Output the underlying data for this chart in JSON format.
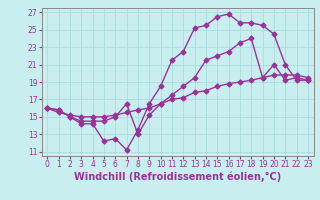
{
  "xlabel": "Windchill (Refroidissement éolien,°C)",
  "bg_color": "#c8eef0",
  "line_color": "#993399",
  "grid_color": "#aadddd",
  "xlim": [
    -0.5,
    23.5
  ],
  "ylim": [
    10.5,
    27.5
  ],
  "xticks": [
    0,
    1,
    2,
    3,
    4,
    5,
    6,
    7,
    8,
    9,
    10,
    11,
    12,
    13,
    14,
    15,
    16,
    17,
    18,
    19,
    20,
    21,
    22,
    23
  ],
  "yticks": [
    11,
    13,
    15,
    17,
    19,
    21,
    23,
    25,
    27
  ],
  "line1_x": [
    0,
    1,
    2,
    3,
    4,
    5,
    6,
    7,
    8,
    9,
    10,
    11,
    12,
    13,
    14,
    15,
    16,
    17,
    18,
    19,
    20,
    21,
    22,
    23
  ],
  "line1_y": [
    16.0,
    15.8,
    15.0,
    14.2,
    14.2,
    12.2,
    12.5,
    11.2,
    13.5,
    16.5,
    18.5,
    21.5,
    22.5,
    25.2,
    25.5,
    26.5,
    26.8,
    25.8,
    25.8,
    25.5,
    24.5,
    21.0,
    19.2,
    19.2
  ],
  "line2_x": [
    0,
    1,
    2,
    3,
    4,
    5,
    6,
    7,
    8,
    9,
    10,
    11,
    12,
    13,
    14,
    15,
    16,
    17,
    18,
    19,
    20,
    21,
    22,
    23
  ],
  "line2_y": [
    16.0,
    15.8,
    15.0,
    14.5,
    14.5,
    14.5,
    15.0,
    16.5,
    13.0,
    15.2,
    16.5,
    17.5,
    18.5,
    19.5,
    21.5,
    22.0,
    22.5,
    23.5,
    24.0,
    19.5,
    21.0,
    19.2,
    19.5,
    19.2
  ],
  "line3_x": [
    0,
    1,
    2,
    3,
    4,
    5,
    6,
    7,
    8,
    9,
    10,
    11,
    12,
    13,
    14,
    15,
    16,
    17,
    18,
    19,
    20,
    21,
    22,
    23
  ],
  "line3_y": [
    16.0,
    15.5,
    15.2,
    15.0,
    15.0,
    15.0,
    15.2,
    15.5,
    15.8,
    16.0,
    16.5,
    17.0,
    17.2,
    17.8,
    18.0,
    18.5,
    18.8,
    19.0,
    19.2,
    19.5,
    19.8,
    19.8,
    19.8,
    19.5
  ],
  "marker": "D",
  "markersize": 2.5,
  "linewidth": 1.0,
  "tick_fontsize": 5.5,
  "xlabel_fontsize": 7.0,
  "xlabel_fontweight": "bold"
}
